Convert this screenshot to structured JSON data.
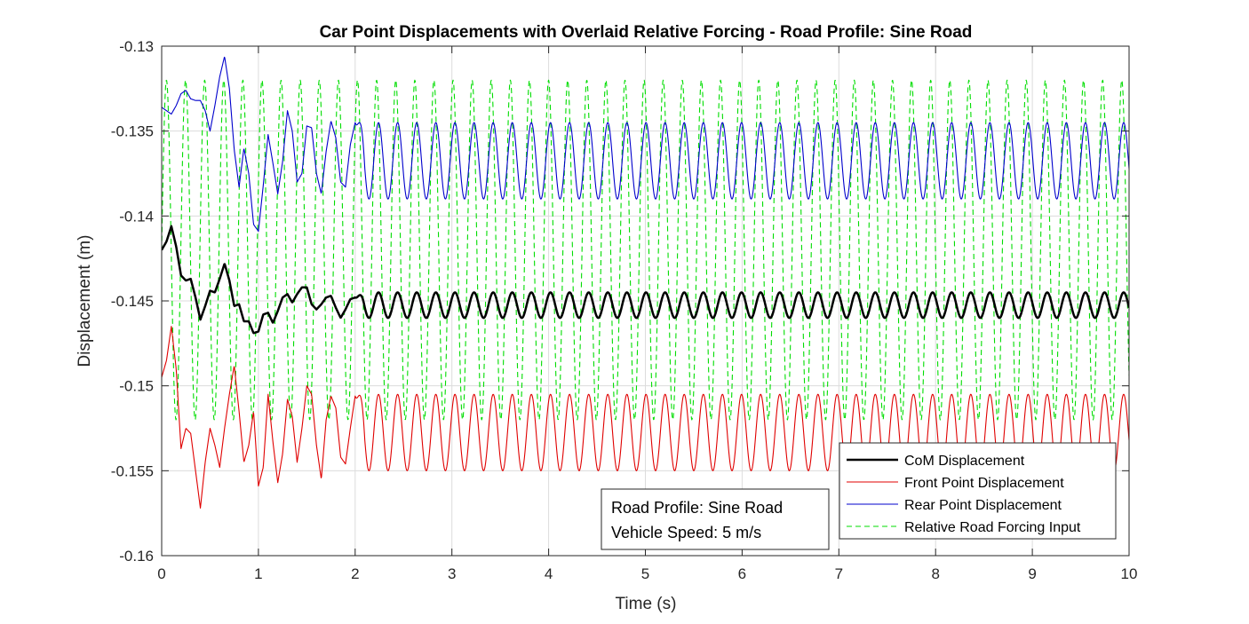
{
  "chart_data": {
    "type": "line",
    "title": "Car Point Displacements with Overlaid Relative Forcing - Road Profile: Sine Road",
    "xlabel": "Time (s)",
    "ylabel": "Displacement (m)",
    "xlim": [
      0,
      10
    ],
    "ylim": [
      -0.16,
      -0.13
    ],
    "xticks": [
      "0",
      "1",
      "2",
      "3",
      "4",
      "5",
      "6",
      "7",
      "8",
      "9",
      "10"
    ],
    "yticks": [
      "-0.13",
      "-0.135",
      "-0.14",
      "-0.145",
      "-0.15",
      "-0.155",
      "-0.16"
    ],
    "grid": true,
    "legend_position": "bottom-right",
    "annotation": [
      "Road Profile: Sine Road",
      "Vehicle Speed: 5 m/s"
    ],
    "series": [
      {
        "name": "CoM Displacement",
        "color": "#000000",
        "style": "solid",
        "width": 2.5,
        "x": [
          0,
          0.05,
          0.1,
          0.15,
          0.2,
          0.25,
          0.3,
          0.35,
          0.4,
          0.45,
          0.5,
          0.55,
          0.6,
          0.65,
          0.7,
          0.75,
          0.8,
          0.85,
          0.9,
          0.95,
          1.0,
          1.05,
          1.1,
          1.15,
          1.2,
          1.25,
          1.3,
          1.35,
          1.4,
          1.45,
          1.5,
          1.55,
          1.6,
          1.65,
          1.7,
          1.75,
          1.8,
          1.85,
          1.9,
          1.95,
          2.0
        ],
        "y": [
          -0.142,
          -0.1415,
          -0.1406,
          -0.1418,
          -0.1435,
          -0.1438,
          -0.1437,
          -0.1448,
          -0.1461,
          -0.1453,
          -0.1444,
          -0.1445,
          -0.1437,
          -0.1428,
          -0.1438,
          -0.1453,
          -0.1452,
          -0.1462,
          -0.1462,
          -0.1469,
          -0.1468,
          -0.1458,
          -0.1457,
          -0.1463,
          -0.1456,
          -0.1448,
          -0.1446,
          -0.1451,
          -0.1446,
          -0.1442,
          -0.1442,
          -0.1452,
          -0.1455,
          -0.1452,
          -0.1448,
          -0.1447,
          -0.1454,
          -0.146,
          -0.1455,
          -0.1449,
          -0.1448
        ],
        "steady": {
          "mean": -0.14525,
          "amplitude": 0.00075,
          "period": 0.1975,
          "phase": -0.628
        }
      },
      {
        "name": "Front Point Displacement",
        "color": "#e00000",
        "style": "solid",
        "width": 1.1,
        "x": [
          0,
          0.05,
          0.1,
          0.15,
          0.2,
          0.25,
          0.3,
          0.35,
          0.4,
          0.45,
          0.5,
          0.55,
          0.6,
          0.65,
          0.7,
          0.75,
          0.8,
          0.85,
          0.9,
          0.95,
          1.0,
          1.05,
          1.1,
          1.15,
          1.2,
          1.25,
          1.3,
          1.35,
          1.4,
          1.45,
          1.5,
          1.55,
          1.6,
          1.65,
          1.7,
          1.75,
          1.8,
          1.85,
          1.9,
          1.95,
          2.0
        ],
        "y": [
          -0.1495,
          -0.1485,
          -0.1465,
          -0.149,
          -0.1537,
          -0.1525,
          -0.1528,
          -0.155,
          -0.1572,
          -0.1545,
          -0.1525,
          -0.1535,
          -0.1548,
          -0.1525,
          -0.1505,
          -0.1488,
          -0.1515,
          -0.1545,
          -0.1535,
          -0.1515,
          -0.1559,
          -0.1548,
          -0.1505,
          -0.1533,
          -0.1557,
          -0.154,
          -0.1508,
          -0.1518,
          -0.1545,
          -0.1525,
          -0.15,
          -0.1505,
          -0.1535,
          -0.1555,
          -0.152,
          -0.1506,
          -0.1513,
          -0.1542,
          -0.1546,
          -0.1525,
          -0.1506
        ],
        "steady": {
          "mean": -0.15275,
          "amplitude": 0.00225,
          "period": 0.1975,
          "phase": -0.628
        }
      },
      {
        "name": "Rear Point Displacement",
        "color": "#0000cc",
        "style": "solid",
        "width": 1.1,
        "x": [
          0,
          0.05,
          0.1,
          0.15,
          0.2,
          0.25,
          0.3,
          0.35,
          0.4,
          0.45,
          0.5,
          0.55,
          0.6,
          0.65,
          0.7,
          0.75,
          0.8,
          0.85,
          0.9,
          0.95,
          1.0,
          1.05,
          1.1,
          1.15,
          1.2,
          1.25,
          1.3,
          1.35,
          1.4,
          1.45,
          1.5,
          1.55,
          1.6,
          1.65,
          1.7,
          1.75,
          1.8,
          1.85,
          1.9,
          1.95,
          2.0
        ],
        "y": [
          -0.1336,
          -0.1338,
          -0.134,
          -0.1335,
          -0.1328,
          -0.1326,
          -0.1331,
          -0.1332,
          -0.1332,
          -0.1338,
          -0.135,
          -0.1335,
          -0.1318,
          -0.1306,
          -0.1325,
          -0.1361,
          -0.1383,
          -0.136,
          -0.1375,
          -0.1405,
          -0.1409,
          -0.1382,
          -0.1352,
          -0.1369,
          -0.1387,
          -0.1368,
          -0.1338,
          -0.135,
          -0.138,
          -0.1375,
          -0.1347,
          -0.1348,
          -0.1375,
          -0.1387,
          -0.1362,
          -0.1344,
          -0.1354,
          -0.138,
          -0.1383,
          -0.1358,
          -0.1345
        ],
        "steady": {
          "mean": -0.13675,
          "amplitude": 0.00225,
          "period": 0.1975,
          "phase": -0.628
        }
      },
      {
        "name": "Relative Road Forcing Input",
        "color": "#00dd00",
        "style": "dashed",
        "width": 1.1,
        "x": [
          0,
          10
        ],
        "y": [
          -0.152,
          -0.132
        ],
        "steady": {
          "mean": -0.142,
          "amplitude": 0.01,
          "period": 0.1975,
          "phase": 0
        }
      }
    ]
  }
}
